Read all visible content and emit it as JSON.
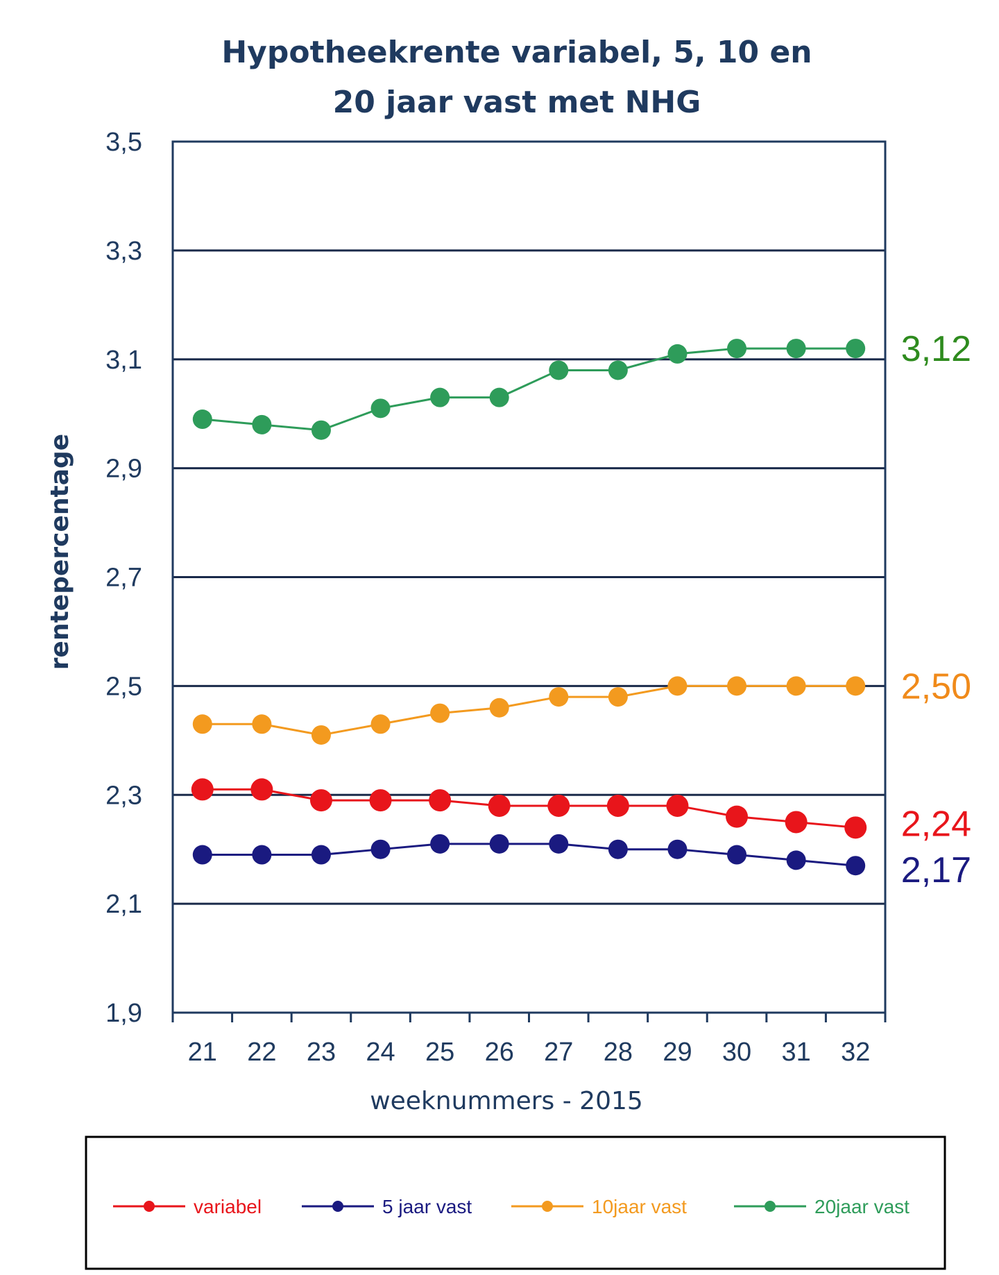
{
  "chart_data": {
    "type": "line",
    "title_line1": "Hypotheekrente variabel, 5, 10 en",
    "title_line2": "20 jaar vast met NHG",
    "xlabel": "weeknummers - 2015",
    "ylabel": "rentepercentage",
    "categories": [
      "21",
      "22",
      "23",
      "24",
      "25",
      "26",
      "27",
      "28",
      "29",
      "30",
      "31",
      "32"
    ],
    "ylim": [
      1.9,
      3.5
    ],
    "yticks": [
      "1,9",
      "2,1",
      "2,3",
      "2,5",
      "2,7",
      "2,9",
      "3,1",
      "3,3",
      "3,5"
    ],
    "grid": true,
    "legend_position": "bottom",
    "series": [
      {
        "name": "variabel",
        "color": "#e8151b",
        "values": [
          2.31,
          2.31,
          2.29,
          2.29,
          2.29,
          2.28,
          2.28,
          2.28,
          2.28,
          2.26,
          2.25,
          2.24
        ],
        "end_label": "2,24"
      },
      {
        "name": "5 jaar vast",
        "color": "#1a1a80",
        "values": [
          2.19,
          2.19,
          2.19,
          2.2,
          2.21,
          2.21,
          2.21,
          2.2,
          2.2,
          2.19,
          2.18,
          2.17
        ],
        "end_label": "2,17"
      },
      {
        "name": "10jaar vast",
        "color": "#f39a1f",
        "values": [
          2.43,
          2.43,
          2.41,
          2.43,
          2.45,
          2.46,
          2.48,
          2.48,
          2.5,
          2.5,
          2.5,
          2.5
        ],
        "end_label": "2,50"
      },
      {
        "name": "20jaar vast",
        "color": "#2e9c5a",
        "values": [
          2.99,
          2.98,
          2.97,
          3.01,
          3.03,
          3.03,
          3.08,
          3.08,
          3.11,
          3.12,
          3.12,
          3.12
        ],
        "end_label": "3,12"
      }
    ]
  },
  "colors": {
    "axis": "#1f3a5f",
    "grid": "#1a2a4a",
    "end_label_20": "#2e8b1e",
    "end_label_10": "#f08a1a",
    "end_label_var": "#e8151b",
    "end_label_5": "#1a1a80"
  }
}
